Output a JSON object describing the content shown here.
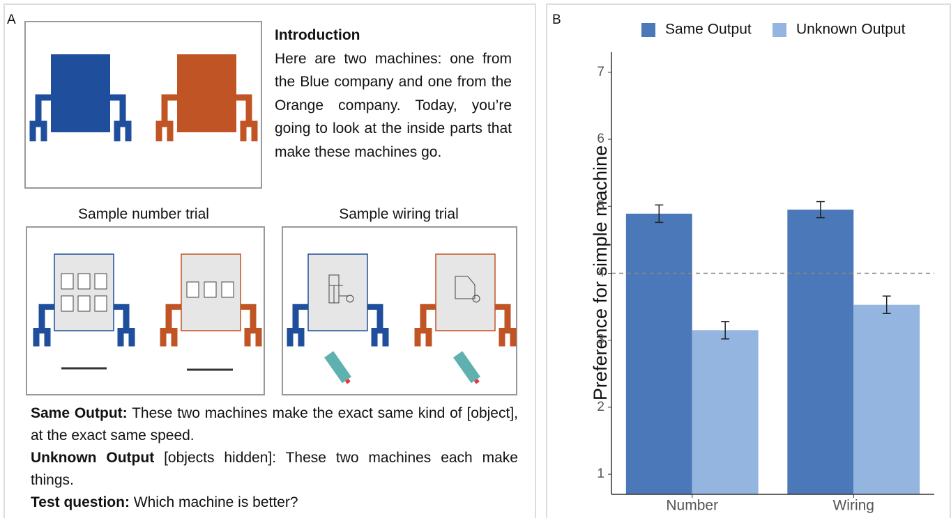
{
  "panel_labels": [
    "A",
    "B"
  ],
  "panel_a": {
    "intro_title": "Introduction",
    "intro_text": "Here are two machines: one from the Blue company and one from the Orange company. Today, you’re going to look at the inside parts that make these machines go.",
    "trials": [
      "Sample number trial",
      "Sample wiring trial"
    ],
    "conditions": [
      {
        "term": "Same Output:",
        "text": "These two machines make the exact same kind of [object], at the exact same speed."
      },
      {
        "term": "Unknown Output",
        "text": "[objects hidden]: These two machines each make things."
      },
      {
        "term": "Test question:",
        "text": "Which machine is better?"
      }
    ]
  },
  "chart_data": {
    "type": "bar",
    "y_label": "Preference for simple machine",
    "categories": [
      "Number",
      "Wiring"
    ],
    "series": [
      {
        "name": "Same Output",
        "color": "#4b78b8",
        "values": [
          4.89,
          4.95
        ],
        "errors": [
          0.13,
          0.12
        ]
      },
      {
        "name": "Unknown Output",
        "color": "#94b5e0",
        "values": [
          3.15,
          3.53
        ],
        "errors": [
          0.13,
          0.13
        ]
      }
    ],
    "ylim": [
      0.7,
      7.3
    ],
    "yticks": [
      1,
      2,
      3,
      4,
      5,
      6,
      7
    ],
    "reference_line": 4,
    "grid": false,
    "legend": "top"
  }
}
